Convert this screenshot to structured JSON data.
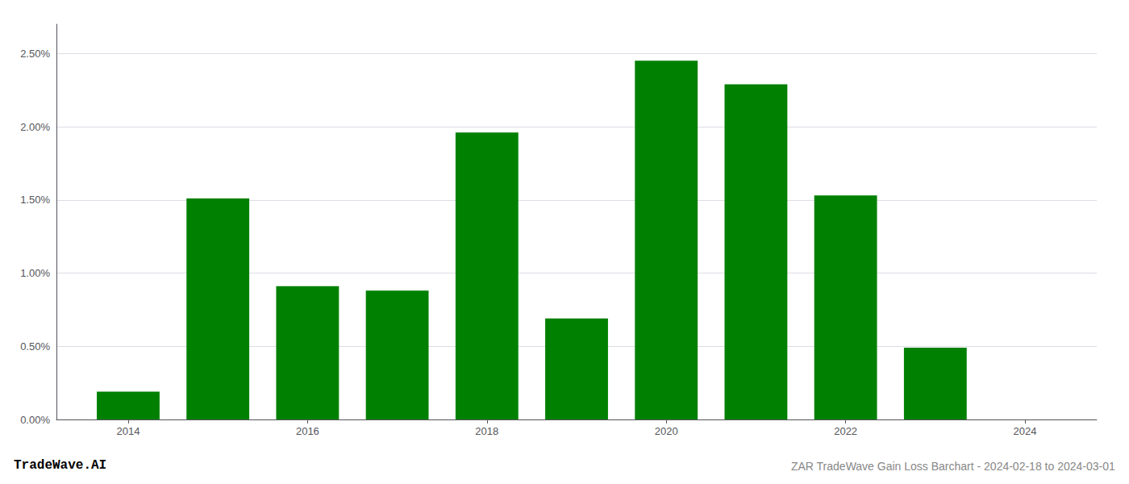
{
  "chart_data": {
    "type": "bar",
    "title": "ZAR TradeWave Gain Loss Barchart - 2024-02-18 to 2024-03-01",
    "annotations": [
      "TradeWave.AI"
    ],
    "x": [
      2014,
      2015,
      2016,
      2017,
      2018,
      2019,
      2020,
      2021,
      2022,
      2023
    ],
    "values": [
      0.0019,
      0.0151,
      0.0091,
      0.0088,
      0.0196,
      0.0069,
      0.0245,
      0.0229,
      0.0153,
      0.0049
    ],
    "color": "#008000",
    "xlim": [
      2013.2,
      2024.8
    ],
    "xticks": [
      2014,
      2016,
      2018,
      2020,
      2022,
      2024
    ],
    "ylim": [
      0,
      0.027
    ],
    "yticks": [
      {
        "value": 0.0,
        "label": "0.00%"
      },
      {
        "value": 0.005,
        "label": "0.50%"
      },
      {
        "value": 0.01,
        "label": "1.00%"
      },
      {
        "value": 0.015,
        "label": "1.50%"
      },
      {
        "value": 0.02,
        "label": "2.00%"
      },
      {
        "value": 0.025,
        "label": "2.50%"
      }
    ],
    "grid": true
  }
}
